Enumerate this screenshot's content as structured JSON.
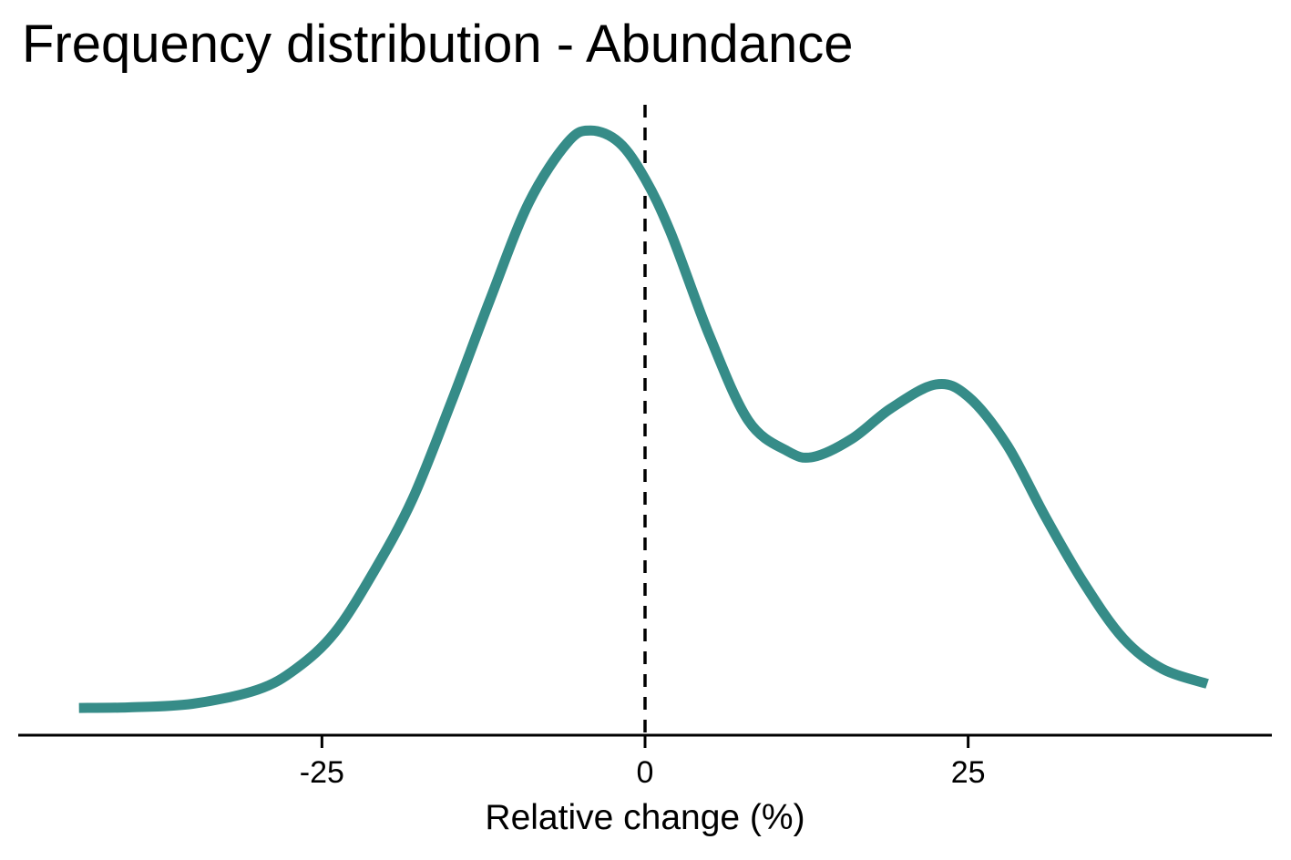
{
  "chart_data": {
    "type": "line",
    "title": "Frequency distribution - Abundance",
    "xlabel": "Relative change (%)",
    "ylabel": "",
    "xlim": [
      -48.5,
      48.5
    ],
    "ylim": [
      0,
      1.05
    ],
    "x_ticks": [
      -25,
      0,
      25
    ],
    "x_tick_labels": [
      "-25",
      "0",
      "25"
    ],
    "y_axis_shown": false,
    "grid": false,
    "legend": "none",
    "reference_line": {
      "x": 0,
      "style": "dashed",
      "color": "#000000"
    },
    "series": [
      {
        "color": "#368C88",
        "x": [
          -43.8,
          -40,
          -35,
          -30,
          -27,
          -24,
          -21,
          -18,
          -15,
          -12,
          -9,
          -6,
          -4.2,
          -2,
          0,
          2,
          5,
          8,
          11,
          13,
          16,
          19,
          22.5,
          25,
          28,
          31,
          34,
          37,
          40,
          43.5
        ],
        "y": [
          0.045,
          0.046,
          0.052,
          0.075,
          0.11,
          0.17,
          0.27,
          0.39,
          0.55,
          0.72,
          0.88,
          0.98,
          1.0,
          0.98,
          0.92,
          0.83,
          0.66,
          0.52,
          0.47,
          0.46,
          0.49,
          0.54,
          0.58,
          0.56,
          0.48,
          0.36,
          0.25,
          0.16,
          0.11,
          0.085
        ]
      }
    ]
  }
}
